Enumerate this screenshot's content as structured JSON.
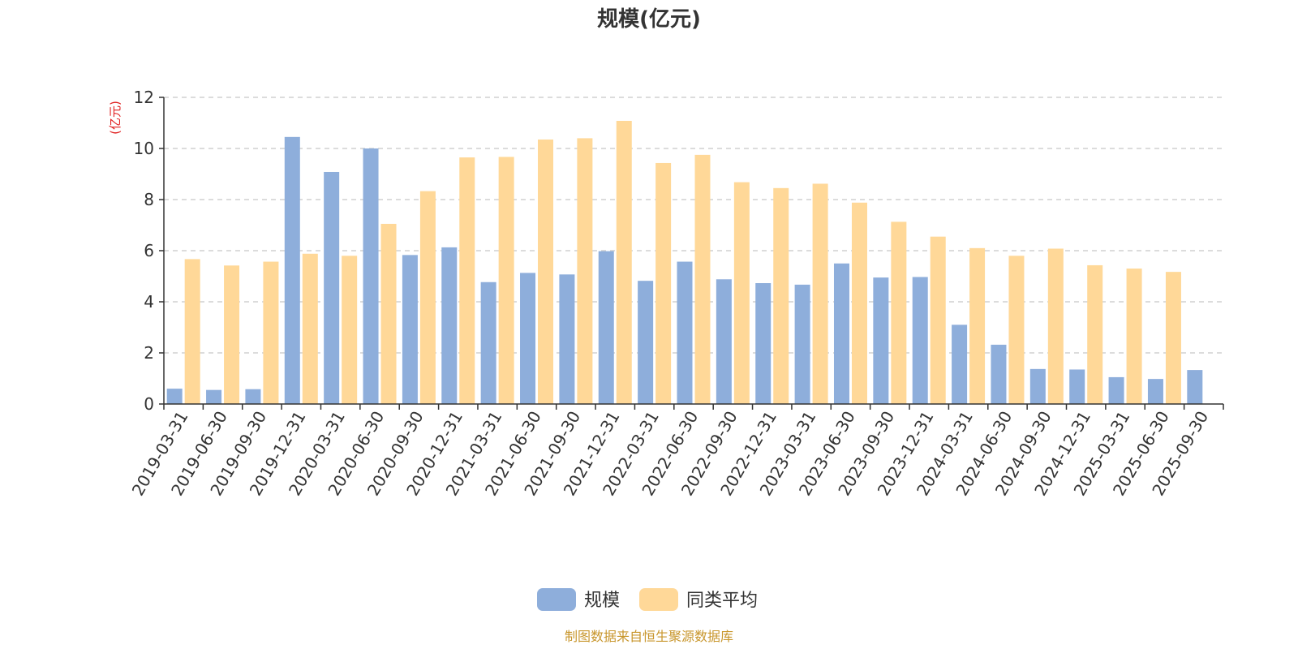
{
  "chart_data": {
    "type": "bar",
    "title": "规模(亿元)",
    "ylabel": "(亿元)",
    "ylim": [
      0,
      12
    ],
    "yticks": [
      0,
      2,
      4,
      6,
      8,
      10,
      12
    ],
    "grid": true,
    "legend_position": "bottom",
    "categories": [
      "2019-03-31",
      "2019-06-30",
      "2019-09-30",
      "2019-12-31",
      "2020-03-31",
      "2020-06-30",
      "2020-09-30",
      "2020-12-31",
      "2021-03-31",
      "2021-06-30",
      "2021-09-30",
      "2021-12-31",
      "2022-03-31",
      "2022-06-30",
      "2022-09-30",
      "2022-12-31",
      "2023-03-31",
      "2023-06-30",
      "2023-09-30",
      "2023-12-31",
      "2024-03-31",
      "2024-06-30",
      "2024-09-30",
      "2024-12-31",
      "2025-03-31",
      "2025-06-30",
      "2025-09-30"
    ],
    "series": [
      {
        "name": "规模",
        "color": "#8eaedb",
        "values": [
          0.6,
          0.55,
          0.58,
          10.45,
          9.08,
          10.0,
          5.83,
          6.13,
          4.77,
          5.13,
          5.07,
          5.98,
          4.82,
          5.57,
          4.88,
          4.73,
          4.67,
          5.5,
          4.95,
          4.97,
          3.1,
          2.32,
          1.37,
          1.35,
          1.05,
          0.98,
          1.33
        ]
      },
      {
        "name": "同类平均",
        "color": "#ffd898",
        "values": [
          5.67,
          5.42,
          5.57,
          5.88,
          5.8,
          7.05,
          8.33,
          9.65,
          9.67,
          10.35,
          10.4,
          11.08,
          9.43,
          9.75,
          8.68,
          8.45,
          8.62,
          7.88,
          7.13,
          6.55,
          6.1,
          5.8,
          6.08,
          5.43,
          5.3,
          5.17,
          null
        ]
      }
    ]
  },
  "source_text": "制图数据来自恒生聚源数据库"
}
